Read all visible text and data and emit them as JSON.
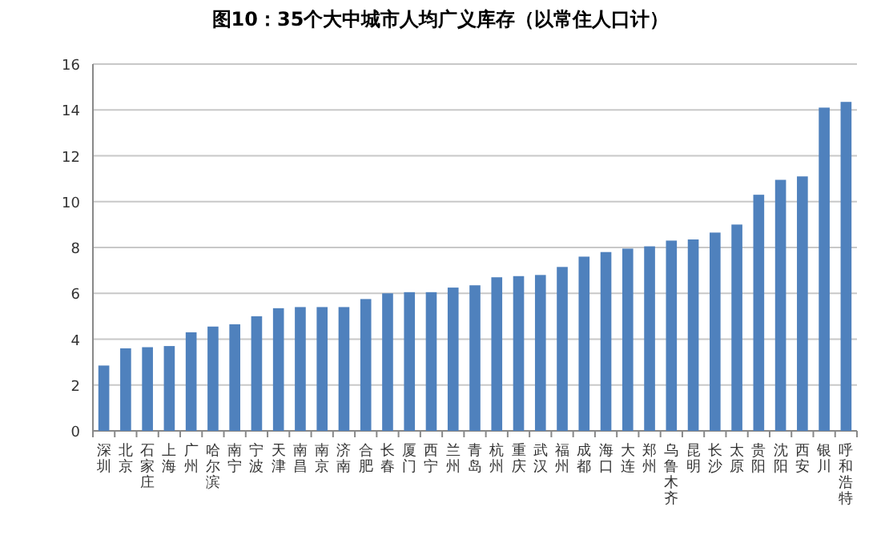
{
  "chart_data": {
    "type": "bar",
    "title": "图10：35个大中城市人均广义库存（以常住人口计）",
    "categories": [
      "深圳",
      "北京",
      "石家庄",
      "上海",
      "广州",
      "哈尔滨",
      "南宁",
      "宁波",
      "天津",
      "南昌",
      "南京",
      "济南",
      "合肥",
      "长春",
      "厦门",
      "西宁",
      "兰州",
      "青岛",
      "杭州",
      "重庆",
      "武汉",
      "福州",
      "成都",
      "海口",
      "大连",
      "郑州",
      "乌鲁木齐",
      "昆明",
      "长沙",
      "太原",
      "贵阳",
      "沈阳",
      "西安",
      "银川",
      "呼和浩特"
    ],
    "values": [
      2.85,
      3.6,
      3.65,
      3.7,
      4.3,
      4.55,
      4.65,
      5.0,
      5.35,
      5.4,
      5.4,
      5.4,
      5.75,
      6.0,
      6.05,
      6.05,
      6.25,
      6.35,
      6.7,
      6.75,
      6.8,
      7.15,
      7.6,
      7.8,
      7.95,
      8.05,
      8.3,
      8.35,
      8.65,
      9.0,
      10.3,
      10.95,
      11.1,
      14.1,
      14.35
    ],
    "color": "#4f81bd",
    "ylim": [
      0,
      16
    ],
    "yticks": [
      0,
      2,
      4,
      6,
      8,
      10,
      12,
      14,
      16
    ],
    "grid": "y"
  }
}
